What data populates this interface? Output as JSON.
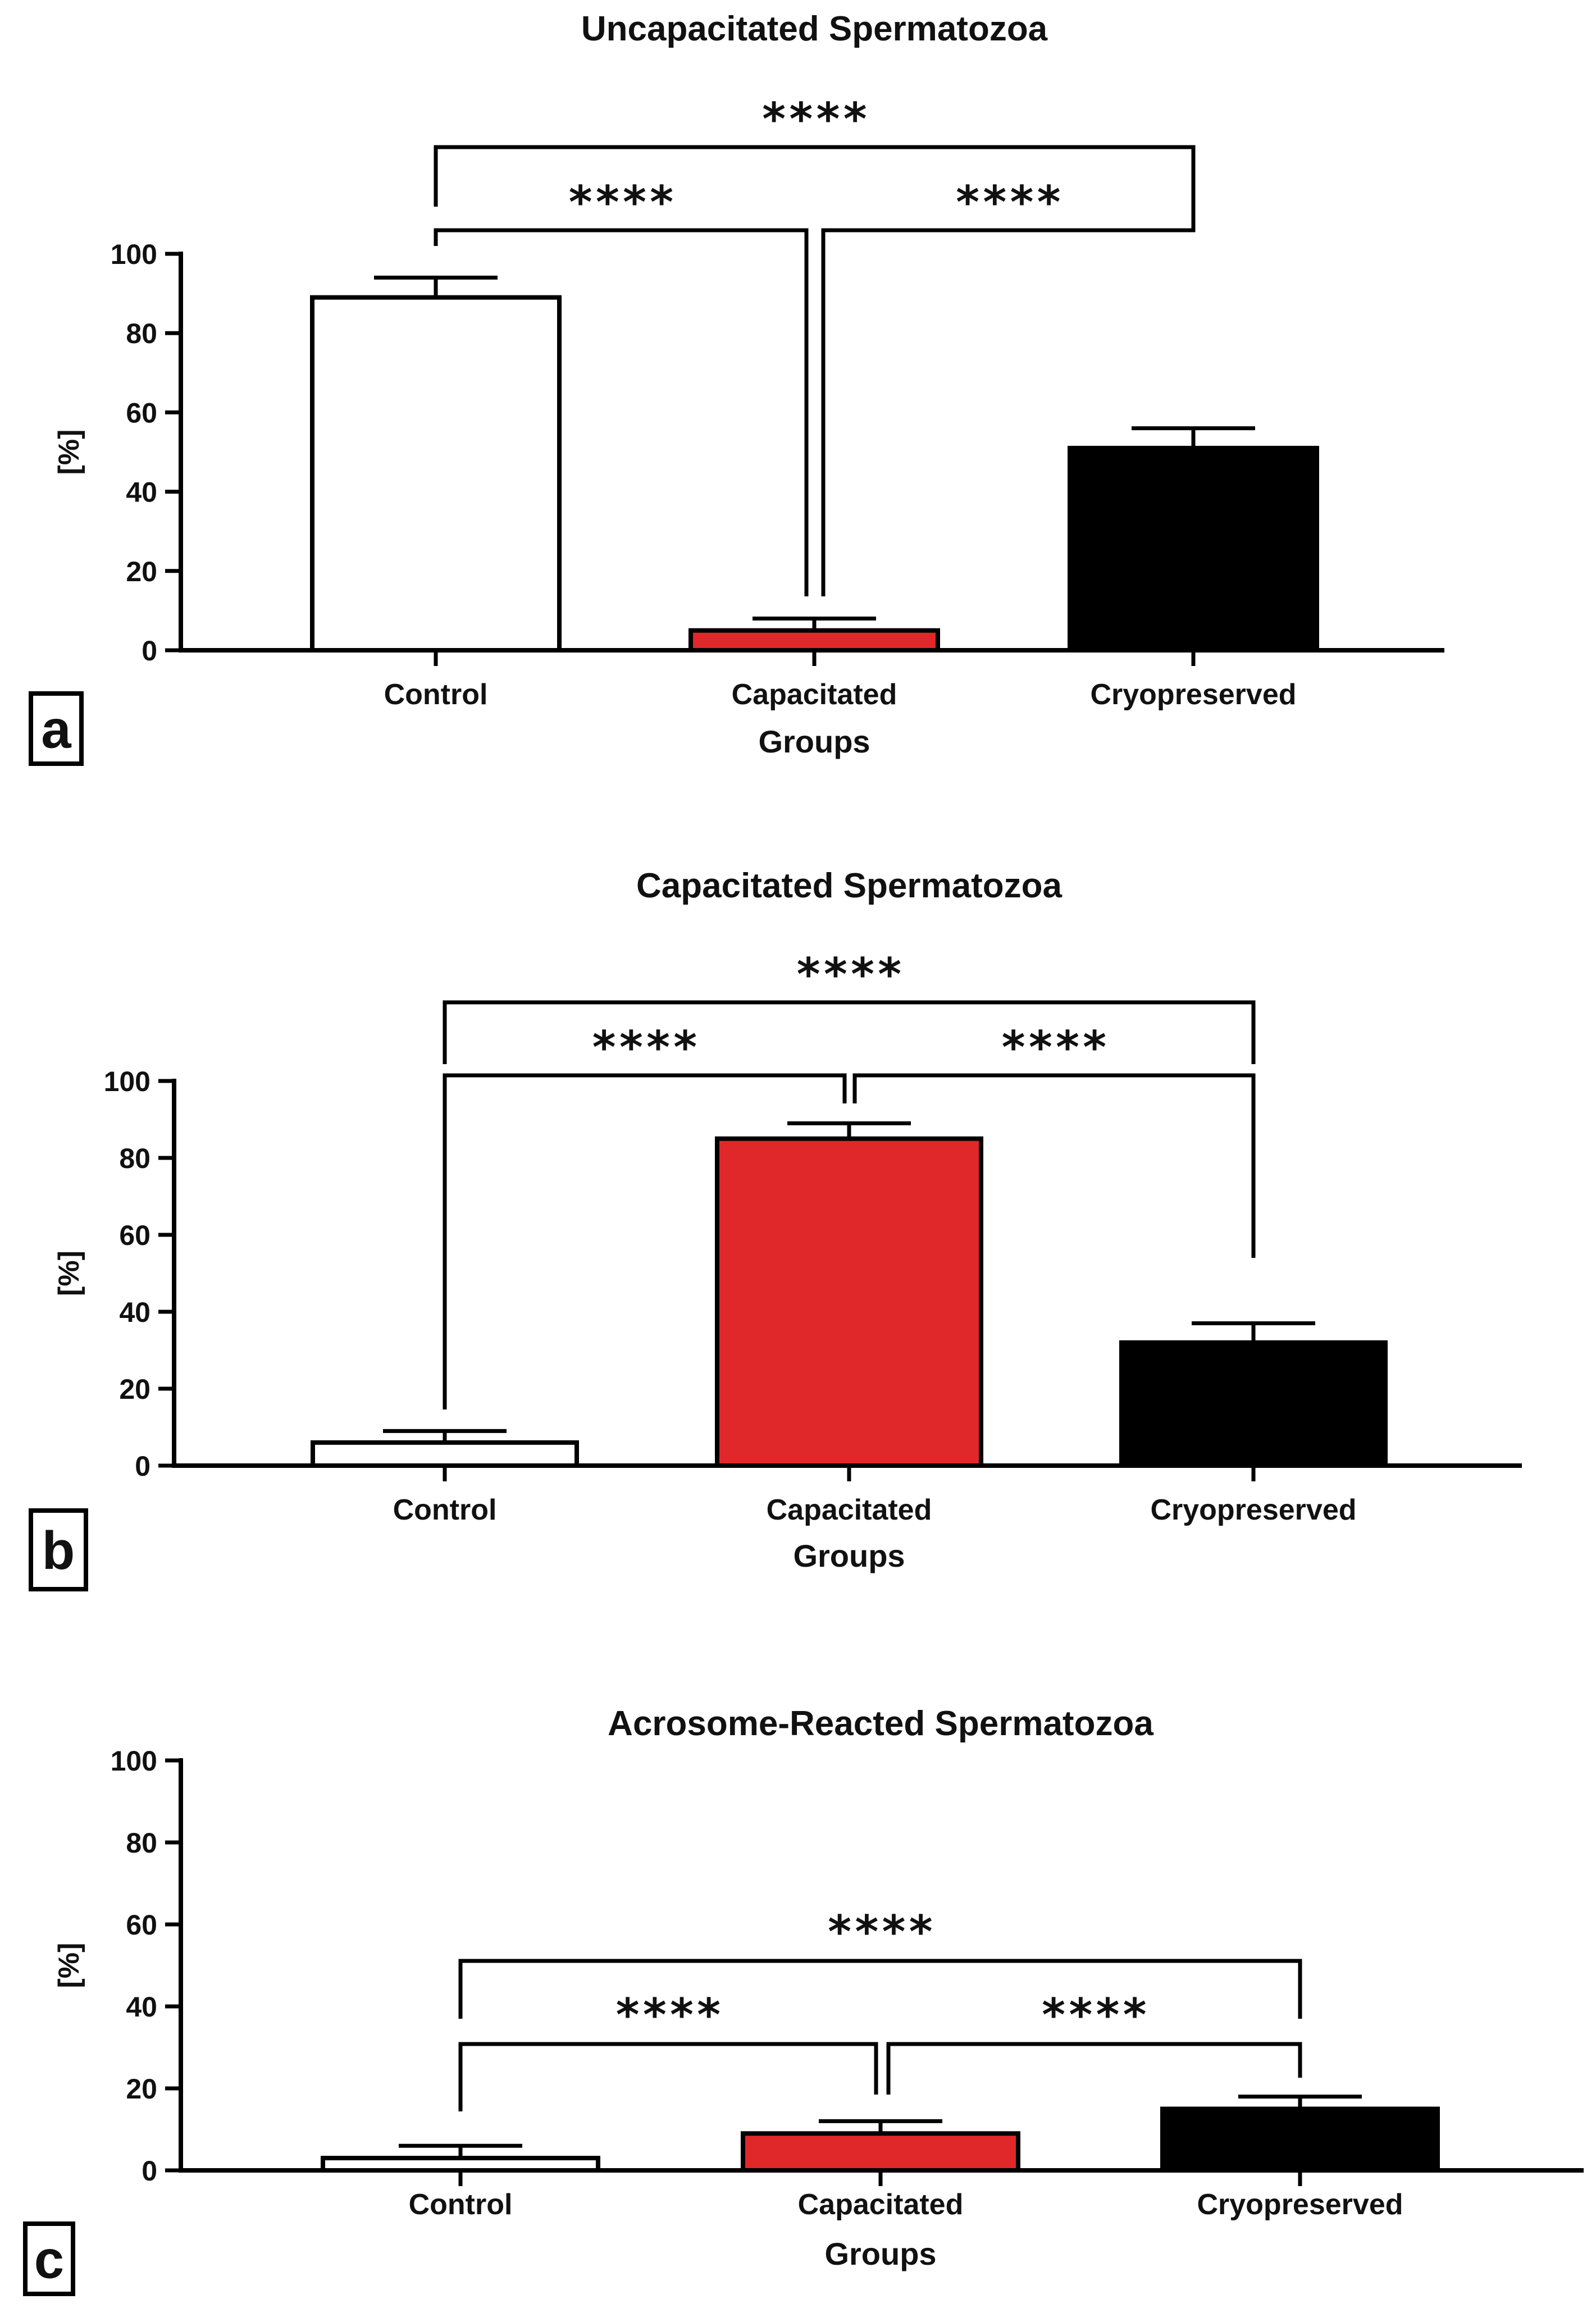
{
  "chart_data": [
    {
      "panel": "a",
      "type": "bar",
      "title": "Uncapacitated Spermatozoa",
      "xlabel": "Groups",
      "ylabel": "[%]",
      "ylim": [
        0,
        100
      ],
      "yticks": [
        "0",
        "20",
        "40",
        "60",
        "80",
        "100"
      ],
      "categories": [
        "Control",
        "Capacitated",
        "Cryopreserved"
      ],
      "values": [
        89,
        5,
        51
      ],
      "errors": [
        5,
        3,
        5
      ],
      "colors": [
        "#ffffff",
        "#e0282a",
        "#000000"
      ],
      "significance": [
        {
          "from": 0,
          "to": 2,
          "label": "****"
        },
        {
          "from": 0,
          "to": 1,
          "label": "****"
        },
        {
          "from": 1,
          "to": 2,
          "label": "****"
        }
      ]
    },
    {
      "panel": "b",
      "type": "bar",
      "title": "Capacitated Spermatozoa",
      "xlabel": "Groups",
      "ylabel": "[%]",
      "ylim": [
        0,
        100
      ],
      "yticks": [
        "0",
        "20",
        "40",
        "60",
        "80",
        "100"
      ],
      "categories": [
        "Control",
        "Capacitated",
        "Cryopreserved"
      ],
      "values": [
        6,
        85,
        32
      ],
      "errors": [
        3,
        4,
        5
      ],
      "colors": [
        "#ffffff",
        "#e0282a",
        "#000000"
      ],
      "significance": [
        {
          "from": 0,
          "to": 2,
          "label": "****"
        },
        {
          "from": 0,
          "to": 1,
          "label": "****"
        },
        {
          "from": 1,
          "to": 2,
          "label": "****"
        }
      ]
    },
    {
      "panel": "c",
      "type": "bar",
      "title": "Acrosome-Reacted Spermatozoa",
      "xlabel": "Groups",
      "ylabel": "[%]",
      "ylim": [
        0,
        100
      ],
      "yticks": [
        "0",
        "20",
        "40",
        "60",
        "80",
        "100"
      ],
      "categories": [
        "Control",
        "Capacitated",
        "Cryopreserved"
      ],
      "values": [
        3,
        9,
        15
      ],
      "errors": [
        3,
        3,
        3
      ],
      "colors": [
        "#ffffff",
        "#e0282a",
        "#000000"
      ],
      "significance": [
        {
          "from": 0,
          "to": 2,
          "label": "****"
        },
        {
          "from": 0,
          "to": 1,
          "label": "****"
        },
        {
          "from": 1,
          "to": 2,
          "label": "****"
        }
      ]
    }
  ]
}
